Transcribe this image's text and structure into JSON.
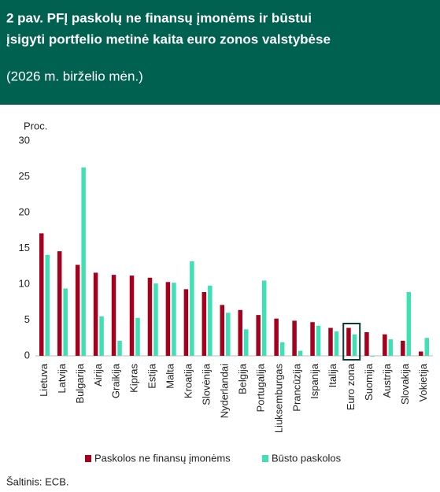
{
  "chart_data": {
    "type": "bar",
    "title": [
      "2 pav.  PFĮ paskolų ne finansų įmonėms ir būstui",
      "įsigyti portfelio metinė kaita euro zonos valstybėse"
    ],
    "subtitle": "(2026 m. birželio mėn.)",
    "y_label": "Proc.",
    "source": "Šaltinis: ECB.",
    "categories": [
      "Lietuva",
      "Latvija",
      "Bulgarija",
      "Airija",
      "Graikija",
      "Kipras",
      "Estija",
      "Malta",
      "Kroatija",
      "Slovėnija",
      "Nyderlandai",
      "Belgija",
      "Portugalija",
      "Liuksemburgas",
      "Prancūzija",
      "Ispanija",
      "Italija",
      "Euro zona",
      "Suomija",
      "Austrija",
      "Slovakija",
      "Vokietija"
    ],
    "series": [
      {
        "name": "Paskolos ne finansų įmonėms",
        "color": "#a5001e",
        "values": [
          17.1,
          14.6,
          12.7,
          11.6,
          11.3,
          11.2,
          10.9,
          10.3,
          9.3,
          8.9,
          7.1,
          6.4,
          5.7,
          5.2,
          4.9,
          4.7,
          3.9,
          3.9,
          3.3,
          3.0,
          2.1,
          0.6
        ]
      },
      {
        "name": "Būsto paskolos",
        "color": "#40e0b5",
        "values": [
          14.1,
          9.4,
          26.3,
          5.5,
          2.1,
          5.3,
          10.1,
          10.2,
          13.2,
          9.8,
          6.0,
          3.7,
          10.5,
          1.9,
          0.7,
          4.2,
          3.4,
          3.0,
          -0.1,
          2.3,
          8.9,
          2.5
        ]
      }
    ],
    "highlight_category": 17,
    "ylim": [
      0,
      30
    ],
    "yticks": [
      0,
      5,
      10,
      15,
      20,
      25,
      30
    ],
    "grid": false
  }
}
